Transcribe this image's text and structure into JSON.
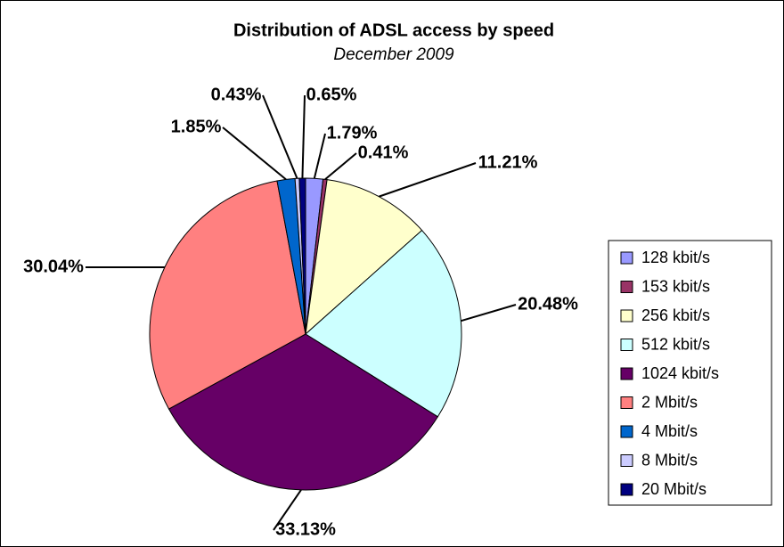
{
  "chart_data": {
    "type": "pie",
    "title": "Distribution of ADSL access by speed",
    "subtitle": "December 2009",
    "categories": [
      "128 kbit/s",
      "153 kbit/s",
      "256 kbit/s",
      "512 kbit/s",
      "1024 kbit/s",
      "2 Mbit/s",
      "4 Mbit/s",
      "8 Mbit/s",
      "20 Mbit/s"
    ],
    "values": [
      1.79,
      0.41,
      11.21,
      20.48,
      33.13,
      30.04,
      1.85,
      0.43,
      0.65
    ],
    "value_labels": [
      "1.79%",
      "0.41%",
      "11.21%",
      "20.48%",
      "33.13%",
      "30.04%",
      "1.85%",
      "0.43%",
      "0.65%"
    ],
    "colors": [
      "#9999ff",
      "#993366",
      "#ffffcc",
      "#ccffff",
      "#660066",
      "#ff8080",
      "#0066cc",
      "#ccccff",
      "#000080"
    ],
    "legend": "right"
  }
}
